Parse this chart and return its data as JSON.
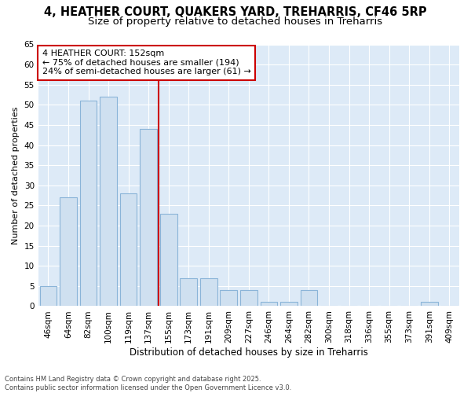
{
  "title1": "4, HEATHER COURT, QUAKERS YARD, TREHARRIS, CF46 5RP",
  "title2": "Size of property relative to detached houses in Treharris",
  "xlabel": "Distribution of detached houses by size in Treharris",
  "ylabel": "Number of detached properties",
  "categories": [
    "46sqm",
    "64sqm",
    "82sqm",
    "100sqm",
    "119sqm",
    "137sqm",
    "155sqm",
    "173sqm",
    "191sqm",
    "209sqm",
    "227sqm",
    "246sqm",
    "264sqm",
    "282sqm",
    "300sqm",
    "318sqm",
    "336sqm",
    "355sqm",
    "373sqm",
    "391sqm",
    "409sqm"
  ],
  "values": [
    5,
    27,
    51,
    52,
    28,
    44,
    23,
    7,
    7,
    4,
    4,
    1,
    1,
    4,
    0,
    0,
    0,
    0,
    0,
    1,
    0
  ],
  "bar_color": "#cfe0f0",
  "bar_edge_color": "#8ab4d8",
  "vline_color": "#cc0000",
  "annotation_line1": "4 HEATHER COURT: 152sqm",
  "annotation_line2": "← 75% of detached houses are smaller (194)",
  "annotation_line3": "24% of semi-detached houses are larger (61) →",
  "annotation_box_color": "#ffffff",
  "annotation_box_edge_color": "#cc0000",
  "ylim": [
    0,
    65
  ],
  "yticks": [
    0,
    5,
    10,
    15,
    20,
    25,
    30,
    35,
    40,
    45,
    50,
    55,
    60,
    65
  ],
  "plot_bg_color": "#ddeaf7",
  "grid_color": "#ffffff",
  "footer": "Contains HM Land Registry data © Crown copyright and database right 2025.\nContains public sector information licensed under the Open Government Licence v3.0.",
  "title1_fontsize": 10.5,
  "title2_fontsize": 9.5,
  "xlabel_fontsize": 8.5,
  "ylabel_fontsize": 8,
  "tick_fontsize": 7.5,
  "annot_fontsize": 8,
  "footer_fontsize": 6
}
